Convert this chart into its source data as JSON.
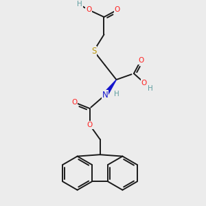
{
  "bg": "#ececec",
  "bc": "#1a1a1a",
  "oc": "#ff2020",
  "sc": "#b8960c",
  "nc": "#1414cc",
  "hc": "#5f9ea0",
  "lw": 1.4,
  "fs": 7.5,
  "dpi": 100,
  "xlim": [
    0,
    10
  ],
  "ylim": [
    0,
    10
  ]
}
